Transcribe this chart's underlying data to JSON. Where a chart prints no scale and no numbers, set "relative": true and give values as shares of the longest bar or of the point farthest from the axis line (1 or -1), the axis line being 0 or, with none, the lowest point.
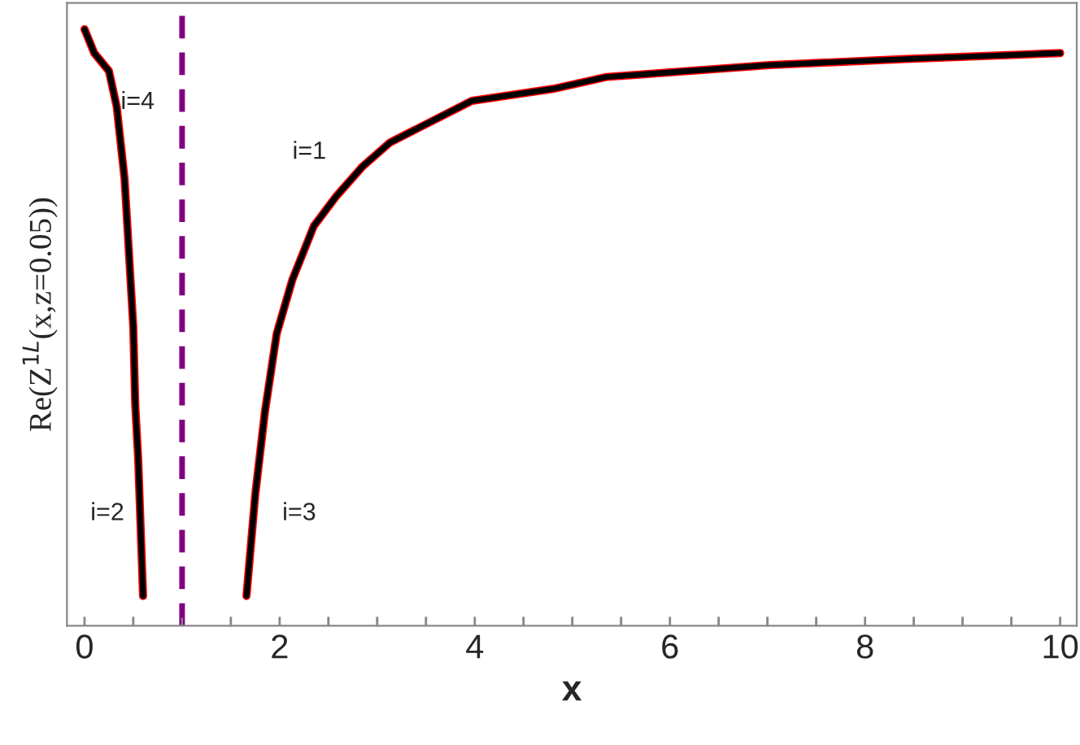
{
  "chart_data": {
    "type": "line",
    "relative": true,
    "xlabel": "x",
    "ylabel": "Re(Z$^{1L}$(x,z=0.05))",
    "series": [
      {
        "color": "#000000",
        "x": [
          0,
          0.1,
          0.25,
          0.33,
          0.41,
          0.45,
          0.5,
          0.52,
          0.55,
          0.6
        ],
        "values": [
          1.0,
          0.96,
          0.93,
          0.87,
          0.75,
          0.64,
          0.5,
          0.37,
          0.28,
          0.05
        ]
      },
      {
        "color": "#000000",
        "x": [
          1.66,
          1.75,
          1.85,
          1.97,
          2.13,
          2.35,
          2.58,
          2.85,
          3.13,
          3.97,
          4.8,
          5.35,
          7.02,
          8.42,
          10
        ],
        "values": [
          0.05,
          0.22,
          0.36,
          0.49,
          0.58,
          0.67,
          0.72,
          0.77,
          0.81,
          0.88,
          0.9,
          0.92,
          0.94,
          0.95,
          0.96
        ]
      }
    ],
    "xlim": [
      -0.18,
      10.17
    ],
    "xticks": [
      0,
      {
        "value": 0.5,
        "label": null
      },
      {
        "value": 1,
        "label": null
      },
      {
        "value": 1.5,
        "label": null
      },
      2,
      {
        "value": 2.5,
        "label": null
      },
      {
        "value": 3,
        "label": null
      },
      {
        "value": 3.5,
        "label": null
      },
      4,
      {
        "value": 4.5,
        "label": null
      },
      {
        "value": 5,
        "label": null
      },
      {
        "value": 5.5,
        "label": null
      },
      6,
      {
        "value": 6.5,
        "label": null
      },
      {
        "value": 7,
        "label": null
      },
      {
        "value": 7.5,
        "label": null
      },
      8,
      {
        "value": 8.5,
        "label": null
      },
      {
        "value": 9,
        "label": null
      },
      {
        "value": 9.5,
        "label": null
      },
      10
    ],
    "ref_lines": [
      {
        "axis": "x",
        "value": 1,
        "color": "#800080",
        "line_style": "dashed"
      }
    ],
    "annotations": [
      "i=4",
      "i=1",
      "i=2",
      "i=3"
    ],
    "grid": false,
    "legend": false
  }
}
